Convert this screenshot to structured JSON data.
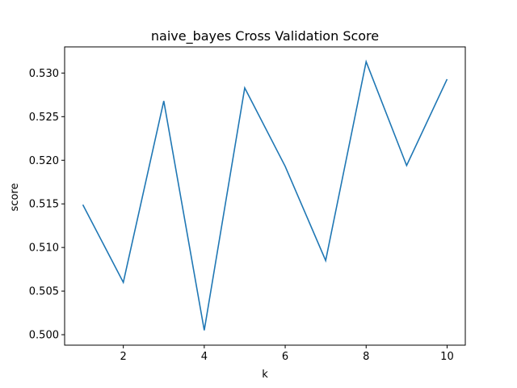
{
  "chart_data": {
    "type": "line",
    "title": "naive_bayes Cross Validation Score",
    "xlabel": "k",
    "ylabel": "score",
    "x": [
      1,
      2,
      3,
      4,
      5,
      6,
      7,
      8,
      9,
      10
    ],
    "series": [
      {
        "color": "#1f77b4",
        "values": [
          0.5149,
          0.506,
          0.5268,
          0.5005,
          0.5283,
          0.5193,
          0.5085,
          0.5313,
          0.5194,
          0.5293
        ]
      }
    ],
    "xlim": [
      0.55,
      10.45
    ],
    "ylim": [
      0.4988,
      0.533
    ],
    "xticks": [
      2,
      4,
      6,
      8,
      10
    ],
    "yticks": [
      0.5,
      0.505,
      0.51,
      0.515,
      0.52,
      0.525,
      0.53
    ],
    "xtick_labels": [
      "2",
      "4",
      "6",
      "8",
      "10"
    ],
    "ytick_labels": [
      "0.500",
      "0.505",
      "0.510",
      "0.515",
      "0.520",
      "0.525",
      "0.530"
    ],
    "grid": false,
    "legend": "none"
  }
}
